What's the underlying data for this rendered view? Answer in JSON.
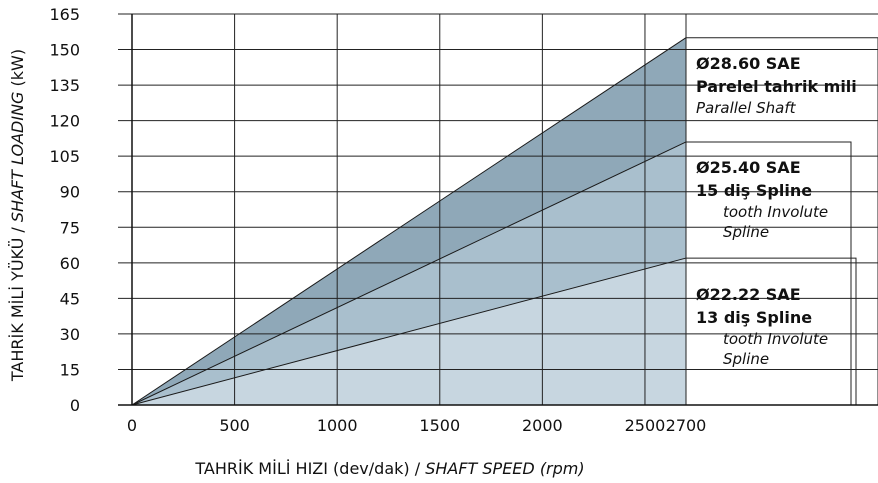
{
  "chart_data": {
    "type": "area",
    "x_ticks": [
      0,
      500,
      1000,
      1500,
      2000,
      2500,
      2700
    ],
    "y_ticks": [
      0,
      15,
      30,
      45,
      60,
      75,
      90,
      105,
      120,
      135,
      150,
      165
    ],
    "xlim": [
      0,
      2700
    ],
    "ylim": [
      0,
      165
    ],
    "grid": true,
    "xlabel": {
      "main": "TAHRİK MİLİ HIZI (dev/dak) / ",
      "italic": "SHAFT SPEED (rpm)"
    },
    "ylabel": {
      "main": "TAHRİK MİLİ YÜKÜ / ",
      "italic": "SHAFT LOADING",
      "unit": " (kW)"
    },
    "series": [
      {
        "x": [
          0,
          2700
        ],
        "y": [
          0,
          155
        ],
        "fill": "#8fa8b8",
        "label": {
          "line1": "Ø28.60 SAE",
          "line2": "Parelel tahrik mili",
          "line3": "Parallel Shaft"
        }
      },
      {
        "x": [
          0,
          2700
        ],
        "y": [
          0,
          111
        ],
        "fill": "#a9bfcd",
        "label": {
          "line1": "Ø25.40 SAE",
          "line2": "15 diş Spline",
          "line3": "tooth Involute",
          "line4": "Spline"
        }
      },
      {
        "x": [
          0,
          2700
        ],
        "y": [
          0,
          62
        ],
        "fill": "#c7d6e0",
        "label": {
          "line1": "Ø22.22 SAE",
          "line2": "13 diş Spline",
          "line3": "tooth Involute",
          "line4": "Spline"
        }
      }
    ]
  }
}
